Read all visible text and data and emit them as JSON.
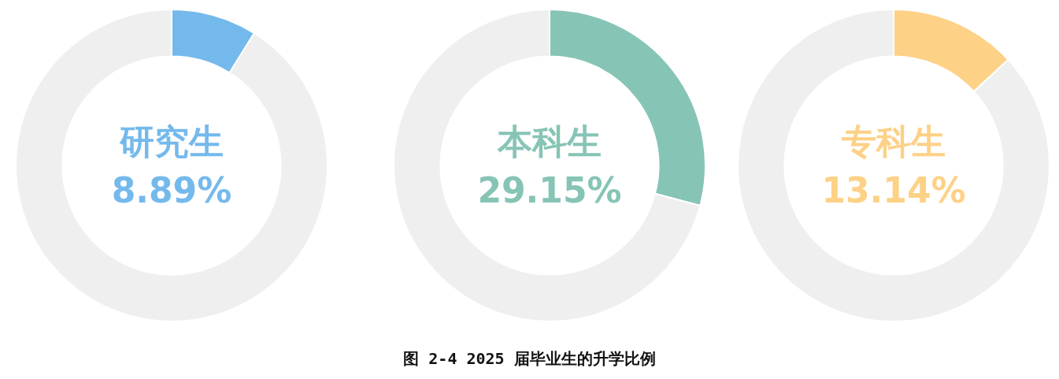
{
  "chart_data": [
    {
      "type": "donut",
      "categories": [
        "研究生",
        null
      ],
      "values": [
        8.89,
        91.11
      ],
      "colors": [
        "#74b9ec",
        "#efefef"
      ],
      "value_labels": [
        "8.89%",
        null
      ],
      "annotations": [
        "图 2-4   2025 届毕业生的升学比例"
      ]
    },
    {
      "type": "donut",
      "categories": [
        "本科生",
        null
      ],
      "values": [
        29.15,
        70.85
      ],
      "colors": [
        "#86c4b6",
        "#efefef"
      ],
      "value_labels": [
        "29.15%",
        null
      ]
    },
    {
      "type": "donut",
      "categories": [
        "专科生",
        null
      ],
      "values": [
        13.14,
        86.86
      ],
      "colors": [
        "#fdd186",
        "#efefef"
      ],
      "value_labels": [
        "13.14%",
        null
      ]
    }
  ]
}
